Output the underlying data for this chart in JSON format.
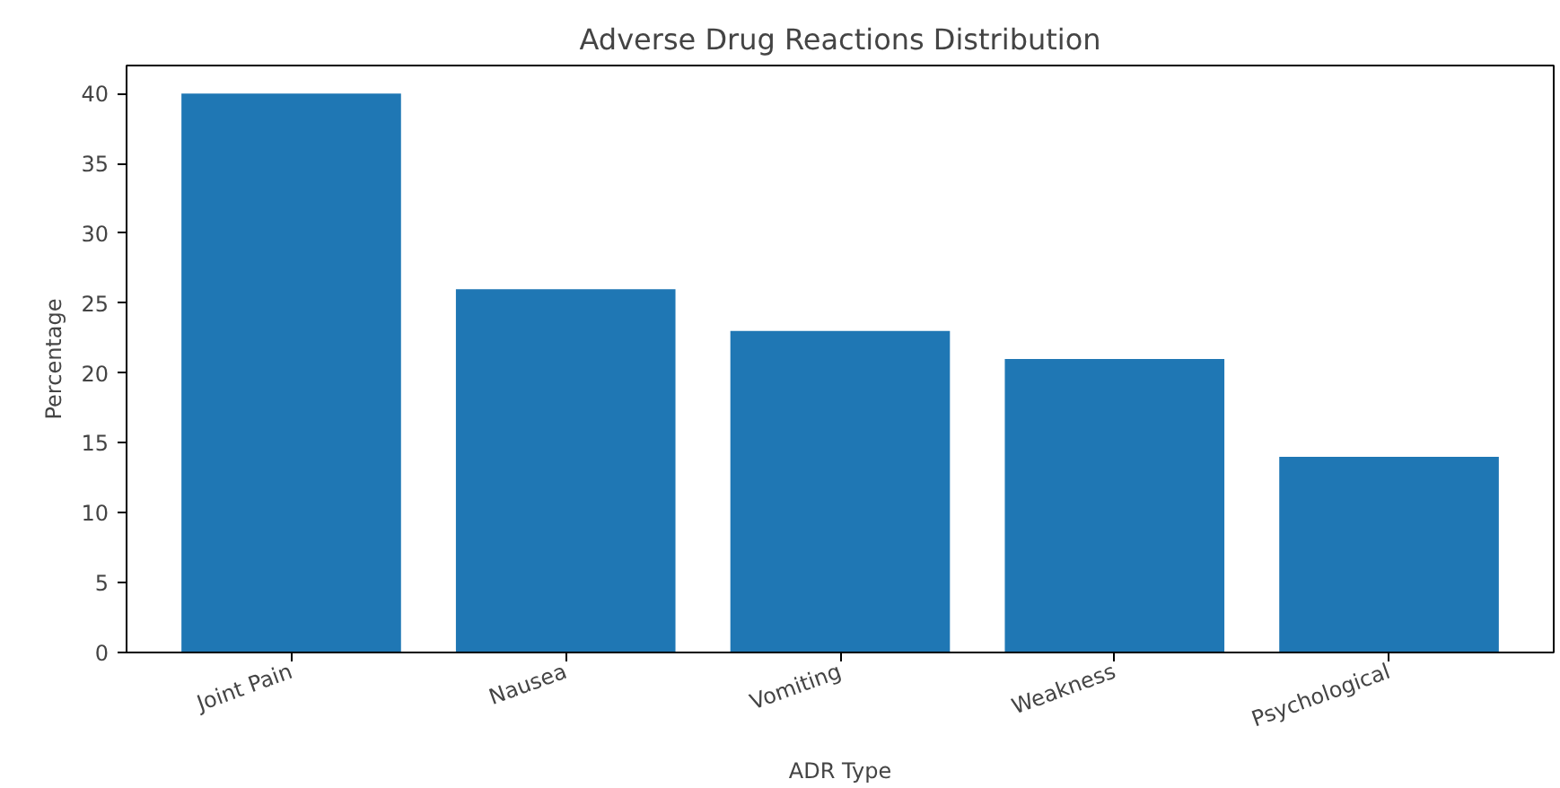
{
  "chart_data": {
    "type": "bar",
    "title": "Adverse Drug Reactions Distribution",
    "xlabel": "ADR Type",
    "ylabel": "Percentage",
    "categories": [
      "Joint Pain",
      "Nausea",
      "Vomiting",
      "Weakness",
      "Psychological"
    ],
    "values": [
      40,
      26,
      23,
      21,
      14
    ],
    "color": "#1f77b4",
    "ylim": [
      0,
      42
    ],
    "yticks": [
      0,
      5,
      10,
      15,
      20,
      25,
      30,
      35,
      40
    ],
    "grid": false
  }
}
